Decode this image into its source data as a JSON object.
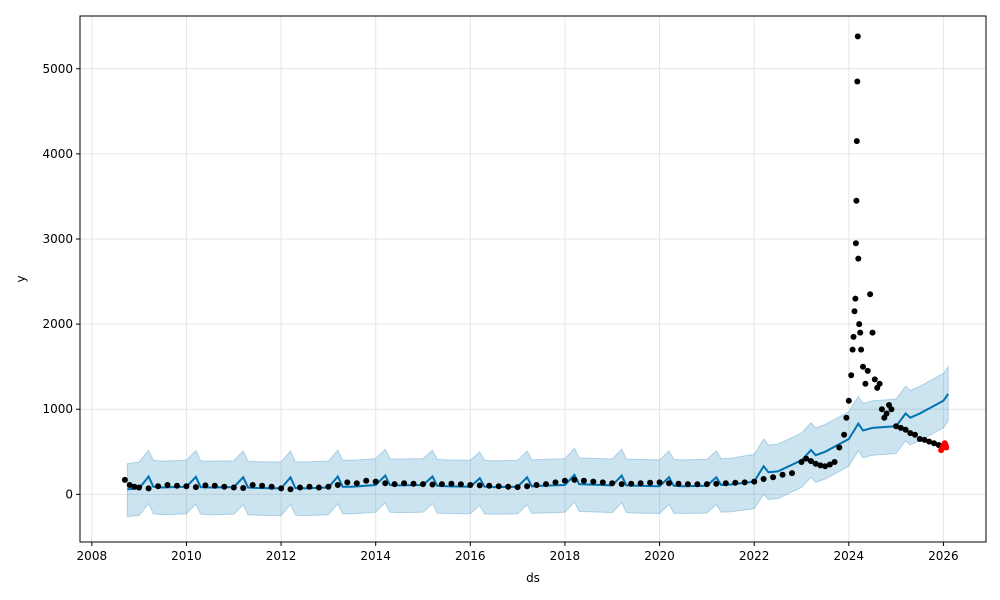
{
  "chart_data": {
    "type": "scatter",
    "xlabel": "ds",
    "ylabel": "y",
    "xlim": [
      2007.75,
      2026.9
    ],
    "ylim": [
      -560,
      5620
    ],
    "grid": true,
    "x_ticks": [
      "2008",
      "2010",
      "2012",
      "2014",
      "2016",
      "2018",
      "2020",
      "2022",
      "2024",
      "2026"
    ],
    "y_ticks": [
      "0",
      "1000",
      "2000",
      "3000",
      "4000",
      "5000"
    ],
    "colors": {
      "observed": "#000000",
      "recent": "#ff0000",
      "forecast_line": "#0072b2",
      "interval_fill": "#0072b2"
    },
    "series": [
      {
        "role": "observed",
        "points": [
          [
            2008.7,
            170
          ],
          [
            2008.8,
            110
          ],
          [
            2008.9,
            90
          ],
          [
            2009.0,
            80
          ],
          [
            2009.2,
            70
          ],
          [
            2009.4,
            95
          ],
          [
            2009.6,
            110
          ],
          [
            2009.8,
            100
          ],
          [
            2010.0,
            95
          ],
          [
            2010.2,
            85
          ],
          [
            2010.4,
            105
          ],
          [
            2010.6,
            100
          ],
          [
            2010.8,
            90
          ],
          [
            2011.0,
            80
          ],
          [
            2011.2,
            75
          ],
          [
            2011.4,
            110
          ],
          [
            2011.6,
            100
          ],
          [
            2011.8,
            90
          ],
          [
            2012.0,
            70
          ],
          [
            2012.2,
            60
          ],
          [
            2012.4,
            80
          ],
          [
            2012.6,
            90
          ],
          [
            2012.8,
            80
          ],
          [
            2013.0,
            90
          ],
          [
            2013.2,
            110
          ],
          [
            2013.4,
            140
          ],
          [
            2013.6,
            130
          ],
          [
            2013.8,
            160
          ],
          [
            2014.0,
            150
          ],
          [
            2014.2,
            130
          ],
          [
            2014.4,
            120
          ],
          [
            2014.6,
            130
          ],
          [
            2014.8,
            125
          ],
          [
            2015.0,
            120
          ],
          [
            2015.2,
            115
          ],
          [
            2015.4,
            120
          ],
          [
            2015.6,
            125
          ],
          [
            2015.8,
            118
          ],
          [
            2016.0,
            110
          ],
          [
            2016.2,
            105
          ],
          [
            2016.4,
            100
          ],
          [
            2016.6,
            95
          ],
          [
            2016.8,
            90
          ],
          [
            2017.0,
            85
          ],
          [
            2017.2,
            95
          ],
          [
            2017.4,
            110
          ],
          [
            2017.6,
            120
          ],
          [
            2017.8,
            140
          ],
          [
            2018.0,
            160
          ],
          [
            2018.2,
            170
          ],
          [
            2018.4,
            160
          ],
          [
            2018.6,
            150
          ],
          [
            2018.8,
            140
          ],
          [
            2019.0,
            130
          ],
          [
            2019.2,
            120
          ],
          [
            2019.4,
            125
          ],
          [
            2019.6,
            130
          ],
          [
            2019.8,
            135
          ],
          [
            2020.0,
            140
          ],
          [
            2020.2,
            130
          ],
          [
            2020.4,
            125
          ],
          [
            2020.6,
            120
          ],
          [
            2020.8,
            118
          ],
          [
            2021.0,
            120
          ],
          [
            2021.2,
            125
          ],
          [
            2021.4,
            130
          ],
          [
            2021.6,
            135
          ],
          [
            2021.8,
            140
          ],
          [
            2022.0,
            150
          ],
          [
            2022.2,
            180
          ],
          [
            2022.4,
            200
          ],
          [
            2022.6,
            230
          ],
          [
            2022.8,
            250
          ],
          [
            2023.0,
            380
          ],
          [
            2023.1,
            420
          ],
          [
            2023.2,
            390
          ],
          [
            2023.3,
            360
          ],
          [
            2023.4,
            340
          ],
          [
            2023.5,
            330
          ],
          [
            2023.6,
            350
          ],
          [
            2023.7,
            380
          ],
          [
            2023.8,
            550
          ],
          [
            2023.9,
            700
          ],
          [
            2023.95,
            900
          ],
          [
            2024.0,
            1100
          ],
          [
            2024.05,
            1400
          ],
          [
            2024.08,
            1700
          ],
          [
            2024.1,
            1850
          ],
          [
            2024.12,
            2150
          ],
          [
            2024.14,
            2300
          ],
          [
            2024.15,
            2950
          ],
          [
            2024.16,
            3450
          ],
          [
            2024.17,
            4150
          ],
          [
            2024.18,
            4850
          ],
          [
            2024.19,
            5380
          ],
          [
            2024.2,
            2770
          ],
          [
            2024.22,
            2000
          ],
          [
            2024.24,
            1900
          ],
          [
            2024.26,
            1700
          ],
          [
            2024.3,
            1500
          ],
          [
            2024.35,
            1300
          ],
          [
            2024.4,
            1450
          ],
          [
            2024.45,
            2350
          ],
          [
            2024.5,
            1900
          ],
          [
            2024.55,
            1350
          ],
          [
            2024.6,
            1250
          ],
          [
            2024.65,
            1300
          ],
          [
            2024.7,
            1000
          ],
          [
            2024.75,
            900
          ],
          [
            2024.8,
            950
          ],
          [
            2024.85,
            1050
          ],
          [
            2024.9,
            1000
          ],
          [
            2025.0,
            800
          ],
          [
            2025.1,
            780
          ],
          [
            2025.2,
            760
          ],
          [
            2025.3,
            720
          ],
          [
            2025.4,
            700
          ],
          [
            2025.5,
            650
          ],
          [
            2025.6,
            640
          ],
          [
            2025.7,
            620
          ],
          [
            2025.8,
            600
          ],
          [
            2025.9,
            580
          ],
          [
            2026.0,
            560
          ]
        ]
      },
      {
        "role": "recent",
        "points": [
          [
            2025.95,
            520
          ],
          [
            2025.97,
            540
          ],
          [
            2025.99,
            560
          ],
          [
            2026.01,
            580
          ],
          [
            2026.03,
            600
          ],
          [
            2026.05,
            570
          ],
          [
            2026.06,
            550
          ]
        ]
      },
      {
        "role": "forecast",
        "x": [
          2008.75,
          2009.0,
          2009.2,
          2009.3,
          2009.5,
          2010.0,
          2010.2,
          2010.3,
          2010.5,
          2011.0,
          2011.2,
          2011.3,
          2011.5,
          2012.0,
          2012.2,
          2012.3,
          2012.5,
          2013.0,
          2013.2,
          2013.3,
          2013.5,
          2014.0,
          2014.2,
          2014.3,
          2014.5,
          2015.0,
          2015.2,
          2015.3,
          2015.5,
          2016.0,
          2016.2,
          2016.3,
          2016.5,
          2017.0,
          2017.2,
          2017.3,
          2017.5,
          2018.0,
          2018.2,
          2018.3,
          2018.5,
          2019.0,
          2019.2,
          2019.3,
          2019.5,
          2020.0,
          2020.2,
          2020.3,
          2020.5,
          2021.0,
          2021.2,
          2021.3,
          2021.5,
          2022.0,
          2022.2,
          2022.3,
          2022.5,
          2023.0,
          2023.2,
          2023.3,
          2023.5,
          2024.0,
          2024.2,
          2024.3,
          2024.5,
          2025.0,
          2025.2,
          2025.3,
          2025.5,
          2026.0,
          2026.1
        ],
        "yhat": [
          60,
          70,
          210,
          90,
          80,
          90,
          205,
          85,
          80,
          85,
          200,
          80,
          75,
          70,
          200,
          75,
          70,
          80,
          210,
          90,
          90,
          110,
          220,
          110,
          105,
          110,
          210,
          100,
          95,
          90,
          190,
          90,
          85,
          90,
          200,
          95,
          100,
          110,
          230,
          120,
          115,
          105,
          220,
          105,
          100,
          95,
          200,
          100,
          95,
          100,
          200,
          110,
          115,
          150,
          330,
          260,
          270,
          400,
          520,
          460,
          500,
          650,
          830,
          750,
          780,
          800,
          950,
          900,
          950,
          1100,
          1180
        ],
        "lower": [
          -260,
          -250,
          -110,
          -230,
          -240,
          -230,
          -115,
          -235,
          -240,
          -235,
          -120,
          -240,
          -245,
          -250,
          -120,
          -245,
          -250,
          -240,
          -110,
          -230,
          -230,
          -210,
          -100,
          -210,
          -215,
          -210,
          -110,
          -220,
          -225,
          -230,
          -130,
          -230,
          -235,
          -230,
          -120,
          -225,
          -220,
          -210,
          -90,
          -200,
          -205,
          -215,
          -100,
          -215,
          -220,
          -225,
          -120,
          -220,
          -225,
          -220,
          -120,
          -210,
          -205,
          -170,
          0,
          -60,
          -50,
          80,
          200,
          140,
          180,
          330,
          510,
          430,
          460,
          480,
          630,
          580,
          630,
          780,
          860
        ],
        "upper": [
          360,
          380,
          520,
          400,
          390,
          400,
          515,
          395,
          390,
          395,
          510,
          390,
          385,
          380,
          510,
          385,
          380,
          390,
          520,
          400,
          400,
          420,
          530,
          420,
          415,
          420,
          520,
          410,
          405,
          400,
          500,
          400,
          395,
          400,
          510,
          405,
          410,
          420,
          540,
          430,
          425,
          415,
          530,
          415,
          410,
          405,
          510,
          410,
          405,
          410,
          510,
          420,
          425,
          470,
          650,
          580,
          590,
          720,
          840,
          780,
          820,
          970,
          1150,
          1070,
          1100,
          1120,
          1270,
          1220,
          1270,
          1420,
          1500
        ]
      }
    ]
  }
}
